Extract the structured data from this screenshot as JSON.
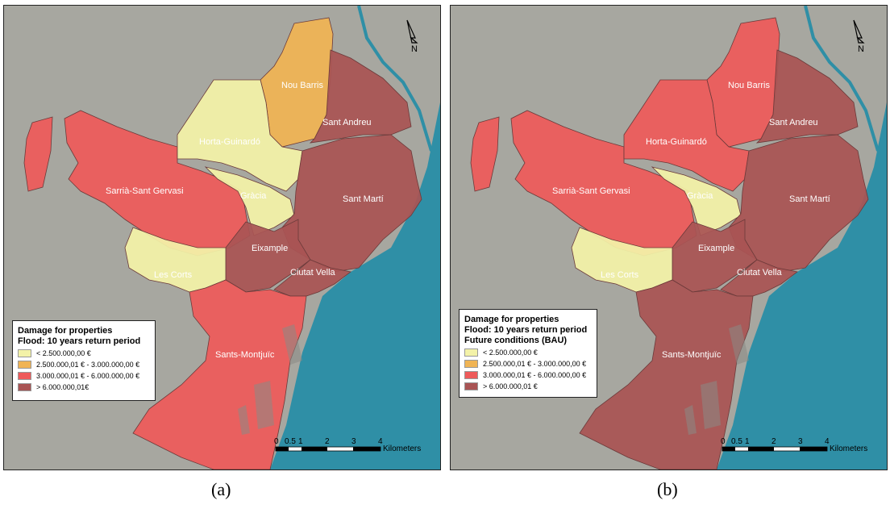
{
  "colors": {
    "class1": "#f3f2a8",
    "class2": "#f0b454",
    "class3": "#ee5a5a",
    "class4": "#a95454",
    "sea": "#2f8fa6",
    "background": "#a7a7a0"
  },
  "panels": [
    {
      "letter": "(a)",
      "legend": {
        "titles": [
          "Damage for properties",
          "Flood: 10 years return period"
        ],
        "items": [
          {
            "label": "< 2.500.000,00 €"
          },
          {
            "label": "2.500.000,01 € - 3.000.000,00 €"
          },
          {
            "label": "3.000.000,01 € - 6.000.000,00 €"
          },
          {
            "label": "> 6.000.000,01€"
          }
        ]
      },
      "districts": {
        "nou_barris": {
          "name": "Nou Barris",
          "class": 2
        },
        "sant_andreu": {
          "name": "Sant Andreu",
          "class": 4
        },
        "horta": {
          "name": "Horta-Guinardó",
          "class": 1
        },
        "sarria": {
          "name": "Sarrià-Sant Gervasi",
          "class": 3
        },
        "gracia": {
          "name": "Gràcia",
          "class": 1
        },
        "sant_marti": {
          "name": "Sant Martí",
          "class": 4
        },
        "eixample": {
          "name": "Eixample",
          "class": 4
        },
        "les_corts": {
          "name": "Les Corts",
          "class": 1
        },
        "ciutat_vella": {
          "name": "Ciutat Vella",
          "class": 4
        },
        "sants": {
          "name": "Sants-Montjuïc",
          "class": 3
        }
      },
      "north": "N",
      "scale": {
        "ticks": [
          "0",
          "0.5",
          "1",
          "2",
          "3",
          "4"
        ],
        "unit": "Kilometers"
      }
    },
    {
      "letter": "(b)",
      "legend": {
        "titles": [
          "Damage for properties",
          "Flood: 10 years return period",
          "Future conditions (BAU)"
        ],
        "items": [
          {
            "label": "< 2.500.000,00 €"
          },
          {
            "label": "2.500.000,01 € - 3.000.000,00 €"
          },
          {
            "label": "3.000.000,01 € - 6.000.000,00 €"
          },
          {
            "label": "> 6.000.000,01 €"
          }
        ]
      },
      "districts": {
        "nou_barris": {
          "name": "Nou Barris",
          "class": 3
        },
        "sant_andreu": {
          "name": "Sant Andreu",
          "class": 4
        },
        "horta": {
          "name": "Horta-Guinardó",
          "class": 3
        },
        "sarria": {
          "name": "Sarrià-Sant Gervasi",
          "class": 3
        },
        "gracia": {
          "name": "Gràcia",
          "class": 1
        },
        "sant_marti": {
          "name": "Sant Martí",
          "class": 4
        },
        "eixample": {
          "name": "Eixample",
          "class": 4
        },
        "les_corts": {
          "name": "Les Corts",
          "class": 1
        },
        "ciutat_vella": {
          "name": "Ciutat Vella",
          "class": 4
        },
        "sants": {
          "name": "Sants-Montjuïc",
          "class": 4
        }
      },
      "north": "N",
      "scale": {
        "ticks": [
          "0",
          "0.5",
          "1",
          "2",
          "3",
          "4"
        ],
        "unit": "Kilometers"
      }
    }
  ]
}
